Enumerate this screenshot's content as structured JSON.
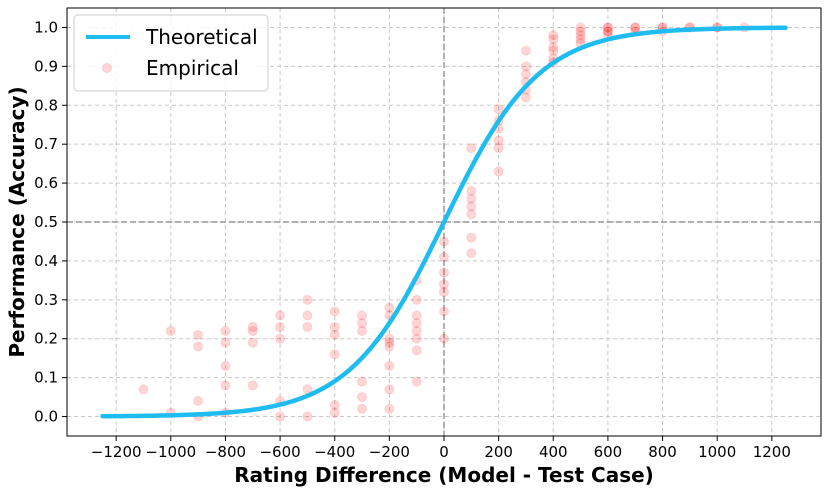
{
  "chart_data": {
    "type": "scatter",
    "title": "",
    "xlabel": "Rating Difference (Model - Test Case)",
    "ylabel": "Performance (Accuracy)",
    "xlim": [
      -1380,
      1380
    ],
    "ylim": [
      -0.05,
      1.05
    ],
    "x_ticks": [
      -1200,
      -1000,
      -800,
      -600,
      -400,
      -200,
      0,
      200,
      400,
      600,
      800,
      1000,
      1200
    ],
    "x_tick_labels": [
      "−1200",
      "−1000",
      "−800",
      "−600",
      "−400",
      "−200",
      "0",
      "200",
      "400",
      "600",
      "800",
      "1000",
      "1200"
    ],
    "y_ticks": [
      0.0,
      0.1,
      0.2,
      0.3,
      0.4,
      0.5,
      0.6,
      0.7,
      0.8,
      0.9,
      1.0
    ],
    "y_tick_labels": [
      "0.0",
      "0.1",
      "0.2",
      "0.3",
      "0.4",
      "0.5",
      "0.6",
      "0.7",
      "0.8",
      "0.9",
      "1.0"
    ],
    "grid": true,
    "reference_lines": {
      "x": 0,
      "y": 0.5
    },
    "legend": {
      "placement": "top-left",
      "entries": [
        "Theoretical",
        "Empirical"
      ]
    },
    "series": [
      {
        "name": "Theoretical",
        "kind": "line",
        "color": "#1ebcf0",
        "function": "logistic",
        "scale": 400,
        "x_range": [
          -1250,
          1250
        ]
      },
      {
        "name": "Empirical",
        "kind": "scatter",
        "color": "#ff0000",
        "points": [
          [
            -1100,
            0.07
          ],
          [
            -1000,
            0.22
          ],
          [
            -1000,
            0.01
          ],
          [
            -900,
            0.21
          ],
          [
            -900,
            0.18
          ],
          [
            -900,
            0.04
          ],
          [
            -900,
            0.0
          ],
          [
            -800,
            0.22
          ],
          [
            -800,
            0.19
          ],
          [
            -800,
            0.13
          ],
          [
            -800,
            0.08
          ],
          [
            -800,
            0.01
          ],
          [
            -700,
            0.23
          ],
          [
            -700,
            0.22
          ],
          [
            -700,
            0.19
          ],
          [
            -700,
            0.08
          ],
          [
            -600,
            0.26
          ],
          [
            -600,
            0.23
          ],
          [
            -600,
            0.2
          ],
          [
            -600,
            0.04
          ],
          [
            -600,
            0.0
          ],
          [
            -500,
            0.3
          ],
          [
            -500,
            0.26
          ],
          [
            -500,
            0.23
          ],
          [
            -500,
            0.07
          ],
          [
            -500,
            0.0
          ],
          [
            -400,
            0.27
          ],
          [
            -400,
            0.23
          ],
          [
            -400,
            0.21
          ],
          [
            -400,
            0.16
          ],
          [
            -400,
            0.03
          ],
          [
            -400,
            0.01
          ],
          [
            -300,
            0.26
          ],
          [
            -300,
            0.24
          ],
          [
            -300,
            0.22
          ],
          [
            -300,
            0.09
          ],
          [
            -300,
            0.05
          ],
          [
            -300,
            0.02
          ],
          [
            -200,
            0.28
          ],
          [
            -200,
            0.26
          ],
          [
            -200,
            0.2
          ],
          [
            -200,
            0.19
          ],
          [
            -200,
            0.18
          ],
          [
            -200,
            0.13
          ],
          [
            -200,
            0.07
          ],
          [
            -200,
            0.02
          ],
          [
            -100,
            0.35
          ],
          [
            -100,
            0.3
          ],
          [
            -100,
            0.26
          ],
          [
            -100,
            0.24
          ],
          [
            -100,
            0.22
          ],
          [
            -100,
            0.2
          ],
          [
            -100,
            0.17
          ],
          [
            -100,
            0.09
          ],
          [
            0,
            0.45
          ],
          [
            0,
            0.41
          ],
          [
            0,
            0.37
          ],
          [
            0,
            0.34
          ],
          [
            0,
            0.32
          ],
          [
            0,
            0.27
          ],
          [
            0,
            0.2
          ],
          [
            100,
            0.69
          ],
          [
            100,
            0.58
          ],
          [
            100,
            0.56
          ],
          [
            100,
            0.54
          ],
          [
            100,
            0.52
          ],
          [
            100,
            0.46
          ],
          [
            100,
            0.42
          ],
          [
            200,
            0.79
          ],
          [
            200,
            0.76
          ],
          [
            200,
            0.74
          ],
          [
            200,
            0.71
          ],
          [
            200,
            0.69
          ],
          [
            200,
            0.63
          ],
          [
            300,
            0.94
          ],
          [
            300,
            0.9
          ],
          [
            300,
            0.88
          ],
          [
            300,
            0.86
          ],
          [
            300,
            0.84
          ],
          [
            300,
            0.82
          ],
          [
            400,
            0.98
          ],
          [
            400,
            0.97
          ],
          [
            400,
            0.95
          ],
          [
            400,
            0.94
          ],
          [
            400,
            0.92
          ],
          [
            400,
            0.91
          ],
          [
            500,
            1.0
          ],
          [
            500,
            0.99
          ],
          [
            500,
            0.98
          ],
          [
            500,
            0.97
          ],
          [
            500,
            0.96
          ],
          [
            600,
            1.0
          ],
          [
            600,
            1.0
          ],
          [
            600,
            0.99
          ],
          [
            600,
            0.99
          ],
          [
            600,
            0.98
          ],
          [
            700,
            1.0
          ],
          [
            700,
            1.0
          ],
          [
            700,
            0.99
          ],
          [
            800,
            1.0
          ],
          [
            800,
            1.0
          ],
          [
            800,
            0.99
          ],
          [
            900,
            1.0
          ],
          [
            900,
            1.0
          ],
          [
            1000,
            1.0
          ],
          [
            1000,
            1.0
          ],
          [
            1100,
            1.0
          ]
        ]
      }
    ]
  }
}
